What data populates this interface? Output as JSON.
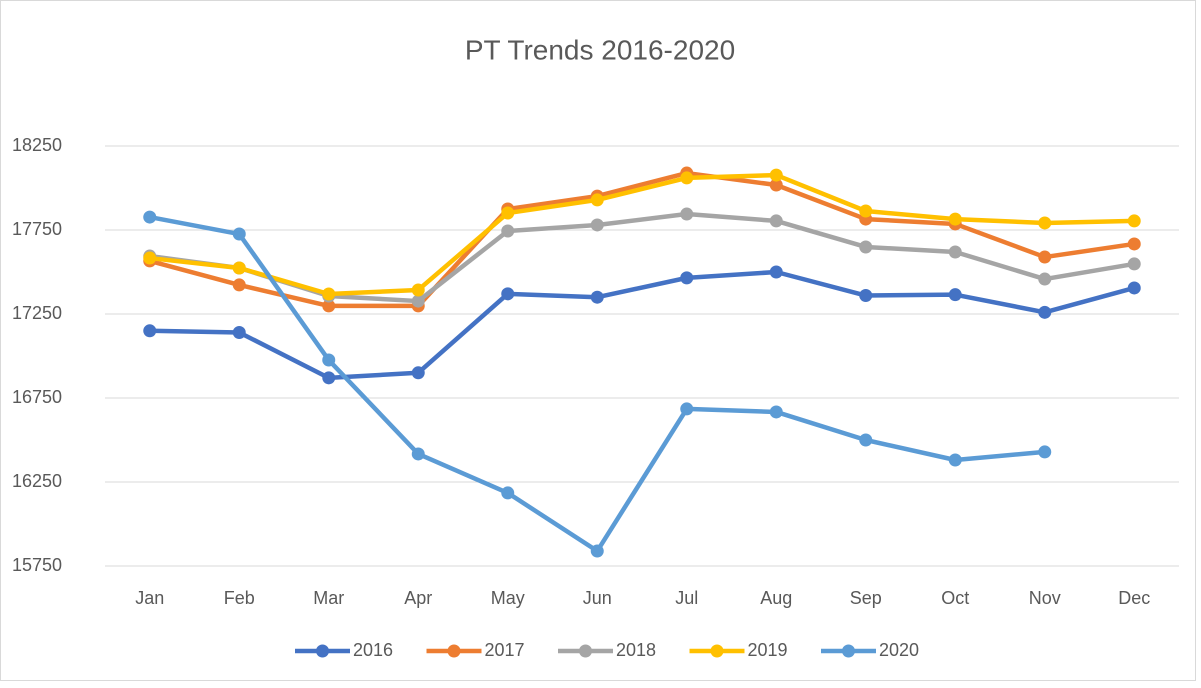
{
  "chart_data": {
    "type": "line",
    "title": "PT Trends 2016-2020",
    "categories": [
      "Jan",
      "Feb",
      "Mar",
      "Apr",
      "May",
      "Jun",
      "Jul",
      "Aug",
      "Sep",
      "Oct",
      "Nov",
      "Dec"
    ],
    "series": [
      {
        "name": "2016",
        "color": "#4472c4",
        "values": [
          17150,
          17140,
          16870,
          16900,
          17370,
          17350,
          17465,
          17500,
          17360,
          17365,
          17260,
          17405
        ]
      },
      {
        "name": "2017",
        "color": "#ed7d31",
        "values": [
          17566,
          17423,
          17298,
          17298,
          17875,
          17952,
          18089,
          18018,
          17815,
          17786,
          17589,
          17667
        ]
      },
      {
        "name": "2018",
        "color": "#a5a5a5",
        "values": [
          17595,
          17524,
          17357,
          17327,
          17744,
          17780,
          17845,
          17804,
          17649,
          17619,
          17458,
          17548
        ]
      },
      {
        "name": "2019",
        "color": "#ffc000",
        "values": [
          17583,
          17524,
          17369,
          17393,
          17851,
          17929,
          18060,
          18077,
          17863,
          17815,
          17792,
          17804
        ]
      },
      {
        "name": "2020",
        "color": "#5b9bd5",
        "values": [
          17827,
          17726,
          16976,
          16417,
          16185,
          15839,
          16685,
          16667,
          16500,
          16381,
          16429,
          null
        ]
      }
    ],
    "ylim": [
      15750,
      18250
    ],
    "yticks": [
      15750,
      16250,
      16750,
      17250,
      17750,
      18250
    ],
    "grid": true,
    "legend": "bottom"
  }
}
